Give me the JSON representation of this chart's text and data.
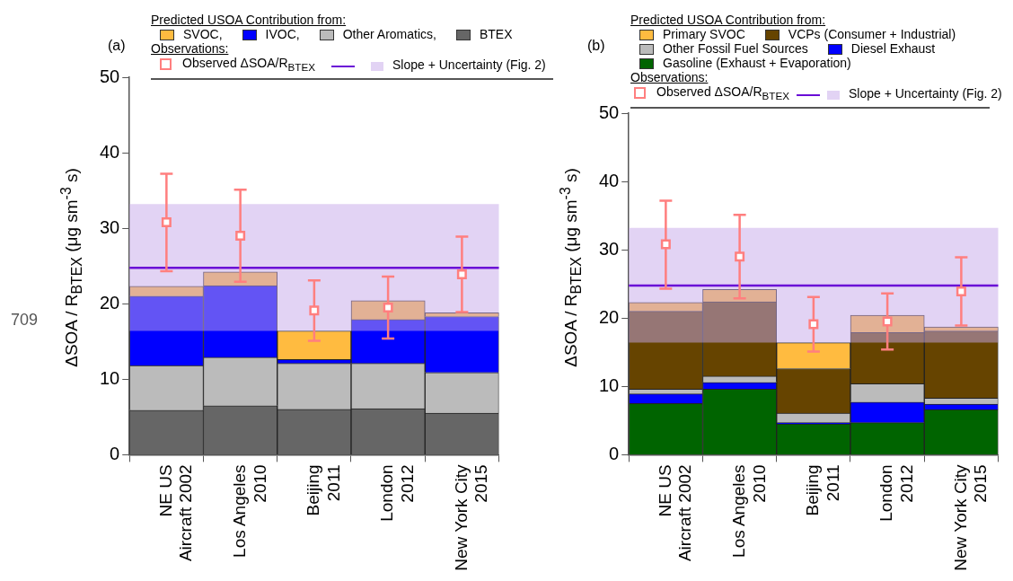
{
  "chart_data": [
    {
      "type": "bar",
      "title": "(a)",
      "legend_title": "Predicted USOA Contribution from:",
      "ylabel": "ΔSOA / R$_{BTEX}$ (μg sm$^{-3}$ s)",
      "categories": [
        "NE US\nAircraft 2002",
        "Los Angeles\n2010",
        "Beijing\n2011",
        "London\n2012",
        "New York City\n2015"
      ],
      "stacked": true,
      "legend": "top",
      "marker": "square",
      "series": [
        {
          "name": "BTEX",
          "color": "#666666",
          "values": [
            5.9,
            6.5,
            6.0,
            6.1,
            5.5
          ]
        },
        {
          "name": "Other Aromatics,",
          "color": "#bbbbbb",
          "values": [
            5.9,
            6.4,
            6.1,
            6.0,
            5.4
          ]
        },
        {
          "name": "IVOC,",
          "color": "#0000ff",
          "values": [
            9.2,
            9.5,
            0.5,
            5.8,
            7.4
          ]
        },
        {
          "name": "SVOC,",
          "color": "#ffbb40",
          "values": [
            1.3,
            1.8,
            3.8,
            2.5,
            0.5
          ]
        },
        {
          "type": "scatter",
          "name": "Observed ΔSOA/R$_{BTEX}$",
          "color": "#ff7f7f",
          "x": [
            "NE US\nAircraft 2002",
            "Los Angeles\n2010",
            "Beijing\n2011",
            "London\n2012",
            "New York City\n2015"
          ],
          "values": [
            30.8,
            29.0,
            19.1,
            19.5,
            23.9
          ],
          "errors": [
            [
              24.3,
              37.2
            ],
            [
              22.9,
              35.1
            ],
            [
              15.1,
              23.1
            ],
            [
              15.4,
              23.6
            ],
            [
              18.9,
              28.9
            ]
          ]
        }
      ],
      "ref_lines": [
        {
          "axis": "y",
          "value": 24.75,
          "color": "#6a0dd6"
        }
      ],
      "bands": [
        {
          "axis": "y",
          "from": 16.4,
          "to": 33.2,
          "label": "Slope + Uncertainty (Fig. 2)",
          "color": "#c6a8ea"
        }
      ],
      "annotations": [
        "Observations:",
        "709"
      ],
      "ylim": [
        0,
        50
      ],
      "yticks": [
        0,
        10,
        20,
        30,
        40,
        50
      ]
    },
    {
      "type": "bar",
      "title": "(b)",
      "legend_title": "Predicted USOA Contribution from:",
      "ylabel": "ΔSOA / R$_{BTEX}$ (μg sm$^{-3}$ s)",
      "categories": [
        "NE US\nAircraft 2002",
        "Los Angeles\n2010",
        "Beijing\n2011",
        "London\n2012",
        "New York City\n2015"
      ],
      "stacked": true,
      "legend": "top",
      "marker": "square",
      "series": [
        {
          "name": "Gasoline (Exhaust + Evaporation)",
          "color": "#006400",
          "values": [
            7.5,
            9.6,
            4.5,
            4.7,
            6.6
          ]
        },
        {
          "name": "Diesel Exhaust",
          "color": "#0000ff",
          "values": [
            1.4,
            1.0,
            0.2,
            3.0,
            0.8
          ]
        },
        {
          "name": "Other Fossil Fuel Sources",
          "color": "#bbbbbb",
          "values": [
            0.7,
            0.9,
            1.4,
            2.7,
            0.9
          ]
        },
        {
          "name": "VCPs (Consumer + Industrial)",
          "color": "#664400",
          "values": [
            11.4,
            10.9,
            6.5,
            7.5,
            9.8
          ]
        },
        {
          "name": "Primary SVOC",
          "color": "#ffbb40",
          "values": [
            1.3,
            1.8,
            3.8,
            2.5,
            0.6
          ]
        },
        {
          "type": "scatter",
          "name": "Observed ΔSOA/R$_{BTEX}$",
          "color": "#ff7f7f",
          "x": [
            "NE US\nAircraft 2002",
            "Los Angeles\n2010",
            "Beijing\n2011",
            "London\n2012",
            "New York City\n2015"
          ],
          "values": [
            30.8,
            29.0,
            19.1,
            19.5,
            23.9
          ],
          "errors": [
            [
              24.3,
              37.2
            ],
            [
              22.9,
              35.1
            ],
            [
              15.1,
              23.1
            ],
            [
              15.4,
              23.6
            ],
            [
              18.9,
              28.9
            ]
          ]
        }
      ],
      "ref_lines": [
        {
          "axis": "y",
          "value": 24.75,
          "color": "#6a0dd6"
        }
      ],
      "bands": [
        {
          "axis": "y",
          "from": 16.4,
          "to": 33.2,
          "label": "Slope + Uncertainty (Fig. 2)",
          "color": "#c6a8ea"
        }
      ],
      "annotations": [
        "Observations:"
      ],
      "ylim": [
        0,
        50
      ],
      "yticks": [
        0,
        10,
        20,
        30,
        40,
        50
      ]
    }
  ]
}
